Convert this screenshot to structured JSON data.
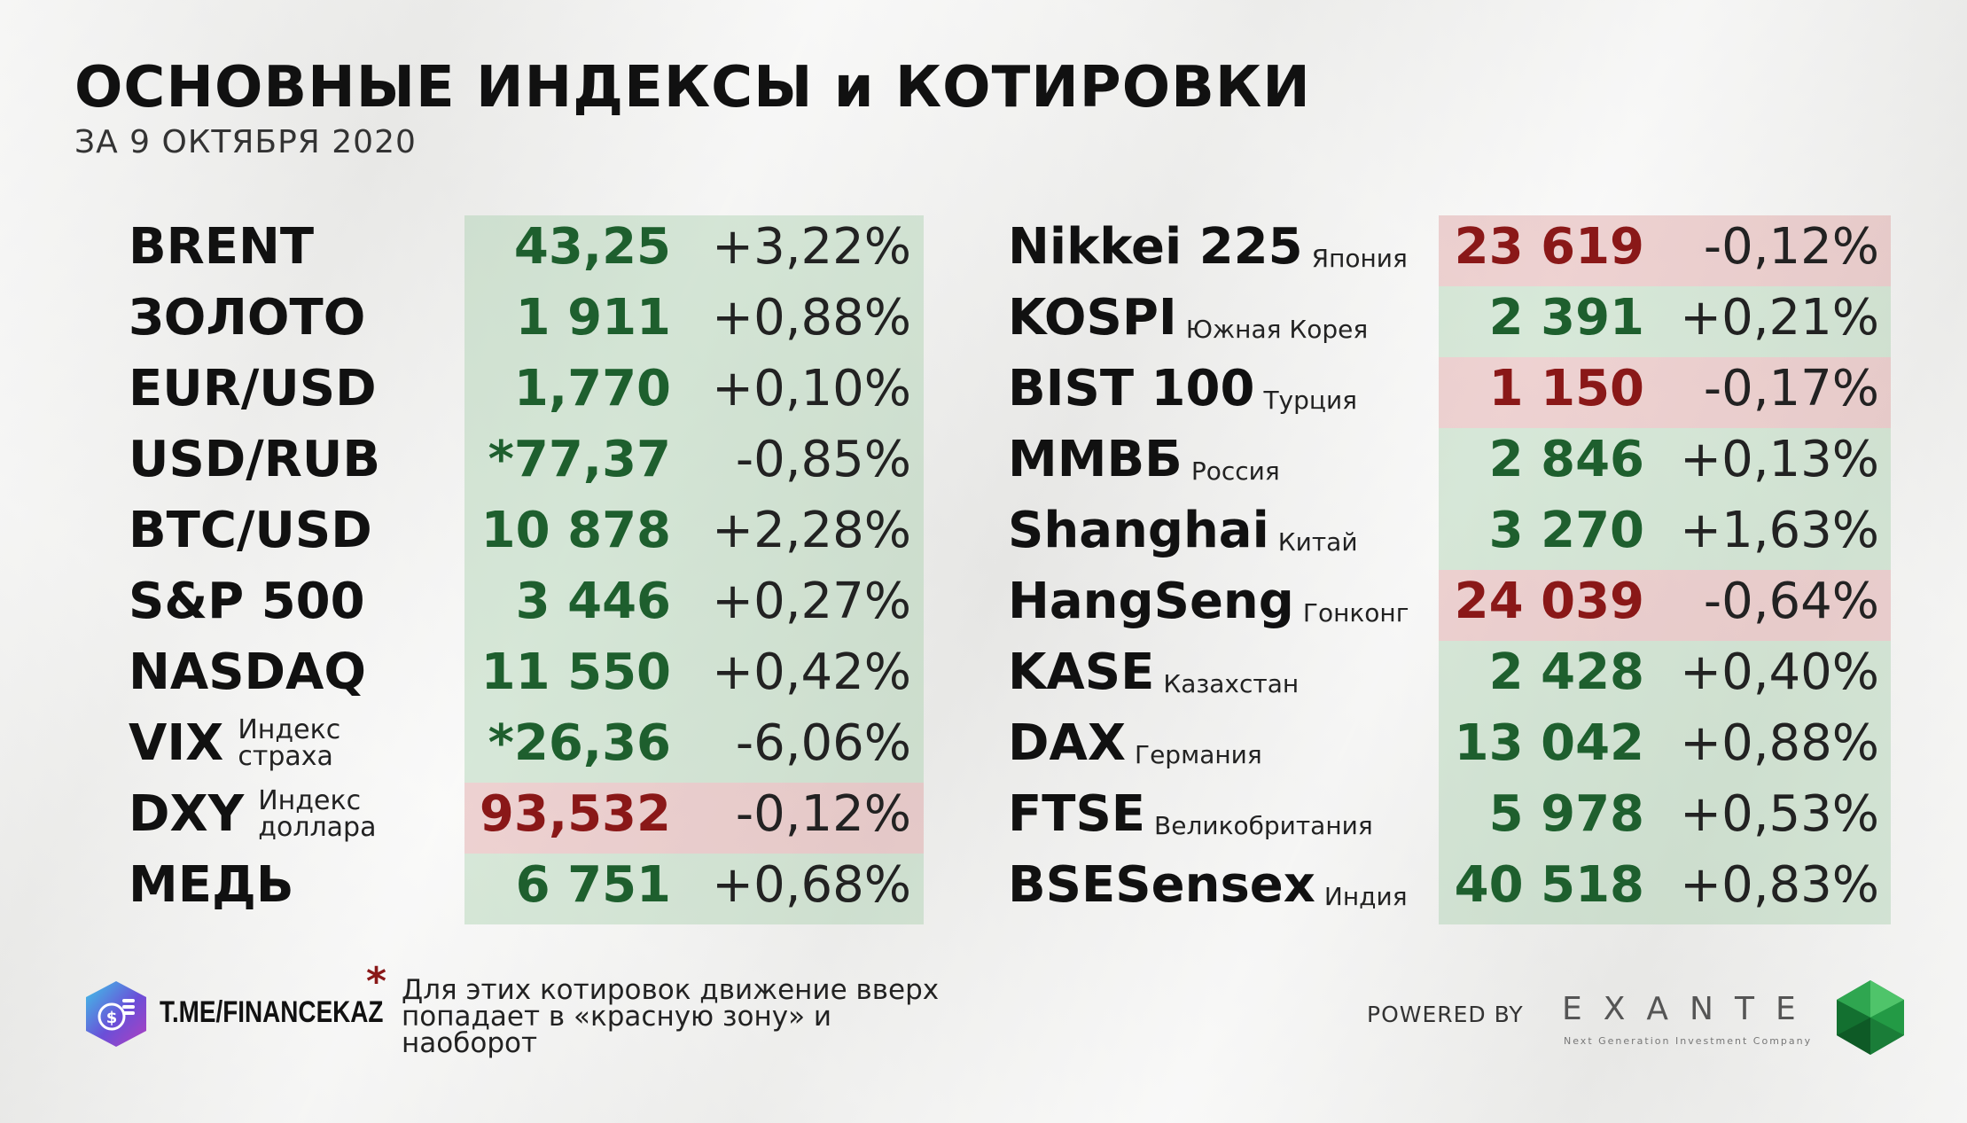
{
  "header": {
    "title": "ОСНОВНЫЕ ИНДЕКСЫ и КОТИРОВКИ",
    "subtitle": "ЗА 9 ОКТЯБРЯ 2020"
  },
  "colors": {
    "up_band": "#a2cca8",
    "down_band": "#db9696",
    "up_text": "#1e5f2e",
    "down_text": "#8a1818"
  },
  "left_table": [
    {
      "name": "BRENT",
      "value": "43,25",
      "change": "+3,22%",
      "trend": "up"
    },
    {
      "name": "ЗОЛОТО",
      "value": "1 911",
      "change": "+0,88%",
      "trend": "up"
    },
    {
      "name": "EUR/USD",
      "value": "1,770",
      "change": "+0,10%",
      "trend": "up"
    },
    {
      "name": "USD/RUB",
      "value": "*77,37",
      "change": "-0,85%",
      "trend": "up"
    },
    {
      "name": "BTC/USD",
      "value": "10 878",
      "change": "+2,28%",
      "trend": "up"
    },
    {
      "name": "S&P 500",
      "value": "3 446",
      "change": "+0,27%",
      "trend": "up"
    },
    {
      "name": "NASDAQ",
      "value": "11 550",
      "change": "+0,42%",
      "trend": "up"
    },
    {
      "name": "VIX",
      "note_line1": "Индекс",
      "note_line2": "страха",
      "value": "*26,36",
      "change": "-6,06%",
      "trend": "up"
    },
    {
      "name": "DXY",
      "note_line1": "Индекс",
      "note_line2": "доллара",
      "value": "93,532",
      "change": "-0,12%",
      "trend": "down"
    },
    {
      "name": "МЕДЬ",
      "value": "6 751",
      "change": "+0,68%",
      "trend": "up"
    }
  ],
  "right_table": [
    {
      "name": "Nikkei 225",
      "note": "Япония",
      "value": "23 619",
      "change": "-0,12%",
      "trend": "down"
    },
    {
      "name": "KOSPI",
      "note": "Южная Корея",
      "value": "2 391",
      "change": "+0,21%",
      "trend": "up"
    },
    {
      "name": "BIST 100",
      "note": "Турция",
      "value": "1 150",
      "change": "-0,17%",
      "trend": "down"
    },
    {
      "name": "ММВБ",
      "note": "Россия",
      "value": "2 846",
      "change": "+0,13%",
      "trend": "up"
    },
    {
      "name": "Shanghai",
      "note": "Китай",
      "value": "3 270",
      "change": "+1,63%",
      "trend": "up"
    },
    {
      "name": "HangSeng",
      "note": "Гонконг",
      "value": "24 039",
      "change": "-0,64%",
      "trend": "down"
    },
    {
      "name": "KASE",
      "note": "Казахстан",
      "value": "2 428",
      "change": "+0,40%",
      "trend": "up"
    },
    {
      "name": "DAX",
      "note": "Германия",
      "value": "13 042",
      "change": "+0,88%",
      "trend": "up"
    },
    {
      "name": "FTSE",
      "note": "Великобритания",
      "value": "5 978",
      "change": "+0,53%",
      "trend": "up"
    },
    {
      "name": "BSESensex",
      "note": "Индия",
      "value": "40 518",
      "change": "+0,83%",
      "trend": "up"
    }
  ],
  "footer": {
    "channel": "T.ME/FINANCEKAZ",
    "asterisk": "*",
    "footnote": "Для этих котировок движение вверх попадает в «красную зону» и наоборот",
    "powered_by": "POWERED BY",
    "brand": "EXANTE",
    "brand_tagline": "Next Generation Investment Company",
    "logo_icon": "financekaz-logo-icon",
    "gem_icon": "exante-gem-icon"
  }
}
